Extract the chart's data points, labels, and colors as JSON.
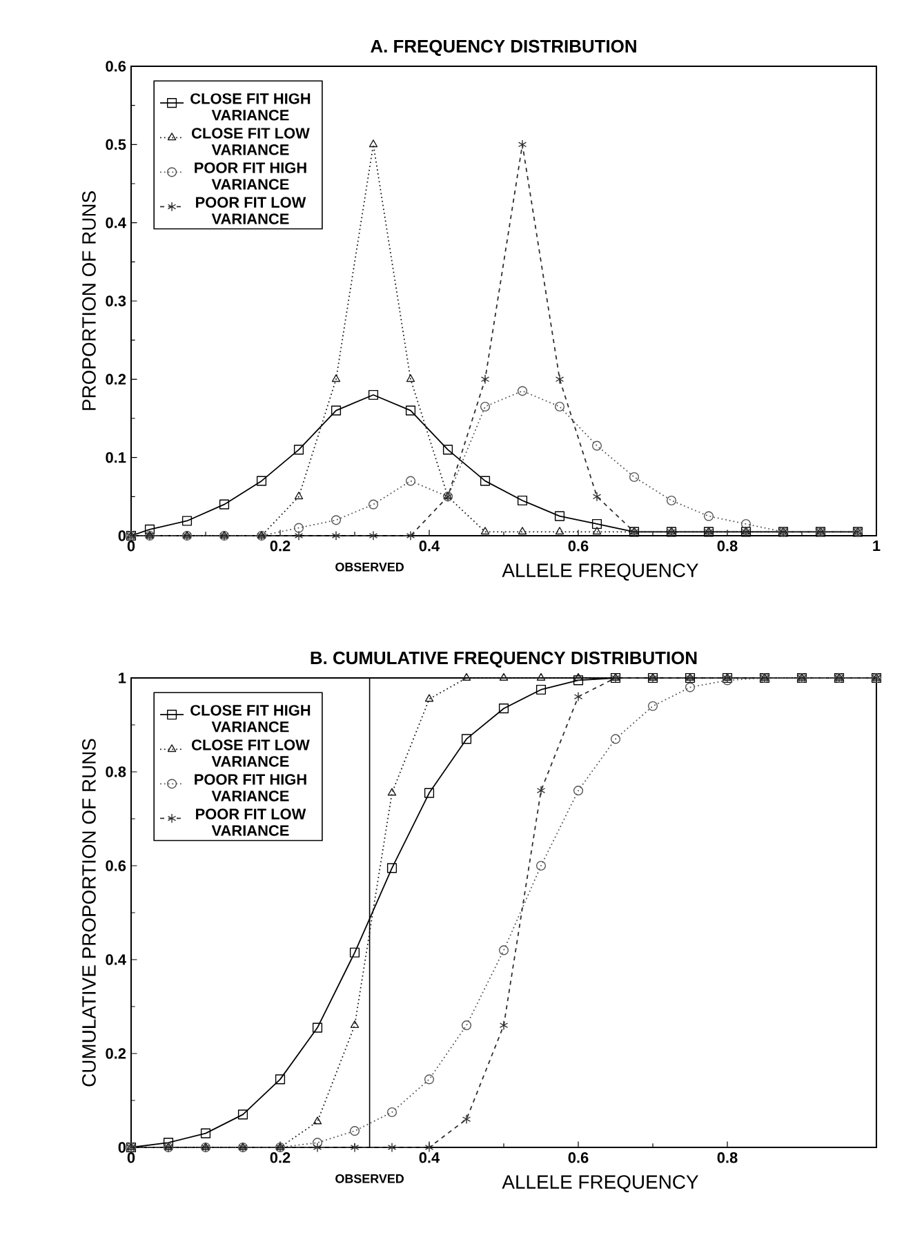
{
  "chart_data": [
    {
      "type": "line",
      "title": "A. FREQUENCY DISTRIBUTION",
      "xlabel": "ALLELE FREQUENCY",
      "ylabel": "PROPORTION OF RUNS",
      "xlim": [
        0,
        1
      ],
      "ylim": [
        0,
        0.6
      ],
      "xticks": [
        0,
        0.2,
        0.4,
        0.6,
        0.8,
        1
      ],
      "yticks": [
        0,
        0.1,
        0.2,
        0.3,
        0.4,
        0.5,
        0.6
      ],
      "legend": "top left",
      "grid": false,
      "x": [
        0,
        0.025,
        0.075,
        0.125,
        0.175,
        0.225,
        0.275,
        0.325,
        0.375,
        0.425,
        0.475,
        0.525,
        0.575,
        0.625,
        0.675,
        0.725,
        0.775,
        0.825,
        0.875,
        0.925,
        0.975
      ],
      "series": [
        {
          "name": "CLOSE FIT HIGH VARIANCE",
          "color": "#000000",
          "marker": "square",
          "line_style": "solid",
          "values": [
            0,
            0.008,
            0.019,
            0.04,
            0.07,
            0.11,
            0.16,
            0.18,
            0.16,
            0.11,
            0.07,
            0.045,
            0.025,
            0.015,
            0.005,
            0.005,
            0.005,
            0.005,
            0.005,
            0.005,
            0.005
          ]
        },
        {
          "name": "CLOSE FIT LOW VARIANCE",
          "color": "#1a1a1a",
          "marker": "triangle",
          "line_style": "dotted",
          "values": [
            0,
            0,
            0,
            0,
            0,
            0.05,
            0.2,
            0.5,
            0.2,
            0.05,
            0.005,
            0.005,
            0.005,
            0.005,
            0.005,
            0.005,
            0.005,
            0.005,
            0.005,
            0.005,
            0.005
          ]
        },
        {
          "name": "POOR FIT HIGH VARIANCE",
          "color": "#555555",
          "marker": "circle",
          "line_style": "dotted",
          "values": [
            0,
            0,
            0,
            0,
            0,
            0.01,
            0.02,
            0.04,
            0.07,
            0.05,
            0.165,
            0.185,
            0.165,
            0.115,
            0.075,
            0.045,
            0.025,
            0.015,
            0.005,
            0.005,
            0.005
          ]
        },
        {
          "name": "POOR FIT LOW VARIANCE",
          "color": "#2e2e2e",
          "marker": "cross",
          "line_style": "dashed",
          "values": [
            0,
            0,
            0,
            0,
            0,
            0,
            0,
            0,
            0,
            0.05,
            0.2,
            0.5,
            0.2,
            0.05,
            0.005,
            0.005,
            0.005,
            0.005,
            0.005,
            0.005,
            0.005
          ]
        }
      ],
      "annotations": [
        {
          "text": "OBSERVED",
          "x": 0.32,
          "y": 0
        }
      ]
    },
    {
      "type": "line",
      "title": "B. CUMULATIVE FREQUENCY DISTRIBUTION",
      "xlabel": "ALLELE FREQUENCY",
      "ylabel": "CUMULATIVE PROPORTION OF RUNS",
      "xlim": [
        0,
        1
      ],
      "ylim": [
        0,
        1
      ],
      "xticks": [
        0,
        0.2,
        0.4,
        0.6,
        0.8
      ],
      "yticks": [
        0,
        0.2,
        0.4,
        0.6,
        0.8,
        1
      ],
      "legend": "top left",
      "grid": false,
      "x": [
        0,
        0.05,
        0.1,
        0.15,
        0.2,
        0.25,
        0.3,
        0.35,
        0.4,
        0.45,
        0.5,
        0.55,
        0.6,
        0.65,
        0.7,
        0.75,
        0.8,
        0.85,
        0.9,
        0.95,
        1
      ],
      "series": [
        {
          "name": "CLOSE FIT HIGH VARIANCE",
          "color": "#000000",
          "marker": "square",
          "line_style": "solid",
          "values": [
            0,
            0.01,
            0.03,
            0.07,
            0.145,
            0.255,
            0.415,
            0.595,
            0.755,
            0.87,
            0.935,
            0.975,
            0.995,
            1,
            1,
            1,
            1,
            1,
            1,
            1,
            1
          ]
        },
        {
          "name": "CLOSE FIT LOW VARIANCE",
          "color": "#1a1a1a",
          "marker": "triangle",
          "line_style": "dotted",
          "values": [
            0,
            0,
            0,
            0,
            0,
            0.055,
            0.26,
            0.755,
            0.955,
            1,
            1,
            1,
            1,
            1,
            1,
            1,
            1,
            1,
            1,
            1,
            1
          ]
        },
        {
          "name": "POOR FIT HIGH VARIANCE",
          "color": "#555555",
          "marker": "circle",
          "line_style": "dotted",
          "values": [
            0,
            0,
            0,
            0,
            0,
            0.01,
            0.035,
            0.075,
            0.145,
            0.26,
            0.42,
            0.6,
            0.76,
            0.87,
            0.94,
            0.98,
            0.995,
            1,
            1,
            1,
            1
          ]
        },
        {
          "name": "POOR FIT LOW VARIANCE",
          "color": "#2e2e2e",
          "marker": "cross",
          "line_style": "dashed",
          "values": [
            0,
            0,
            0,
            0,
            0,
            0,
            0,
            0,
            0,
            0.06,
            0.26,
            0.76,
            0.96,
            1,
            1,
            1,
            1,
            1,
            1,
            1,
            1
          ]
        }
      ],
      "ref_lines": [
        {
          "axis": "x",
          "value": 0.32,
          "label": "OBSERVED"
        }
      ]
    }
  ]
}
